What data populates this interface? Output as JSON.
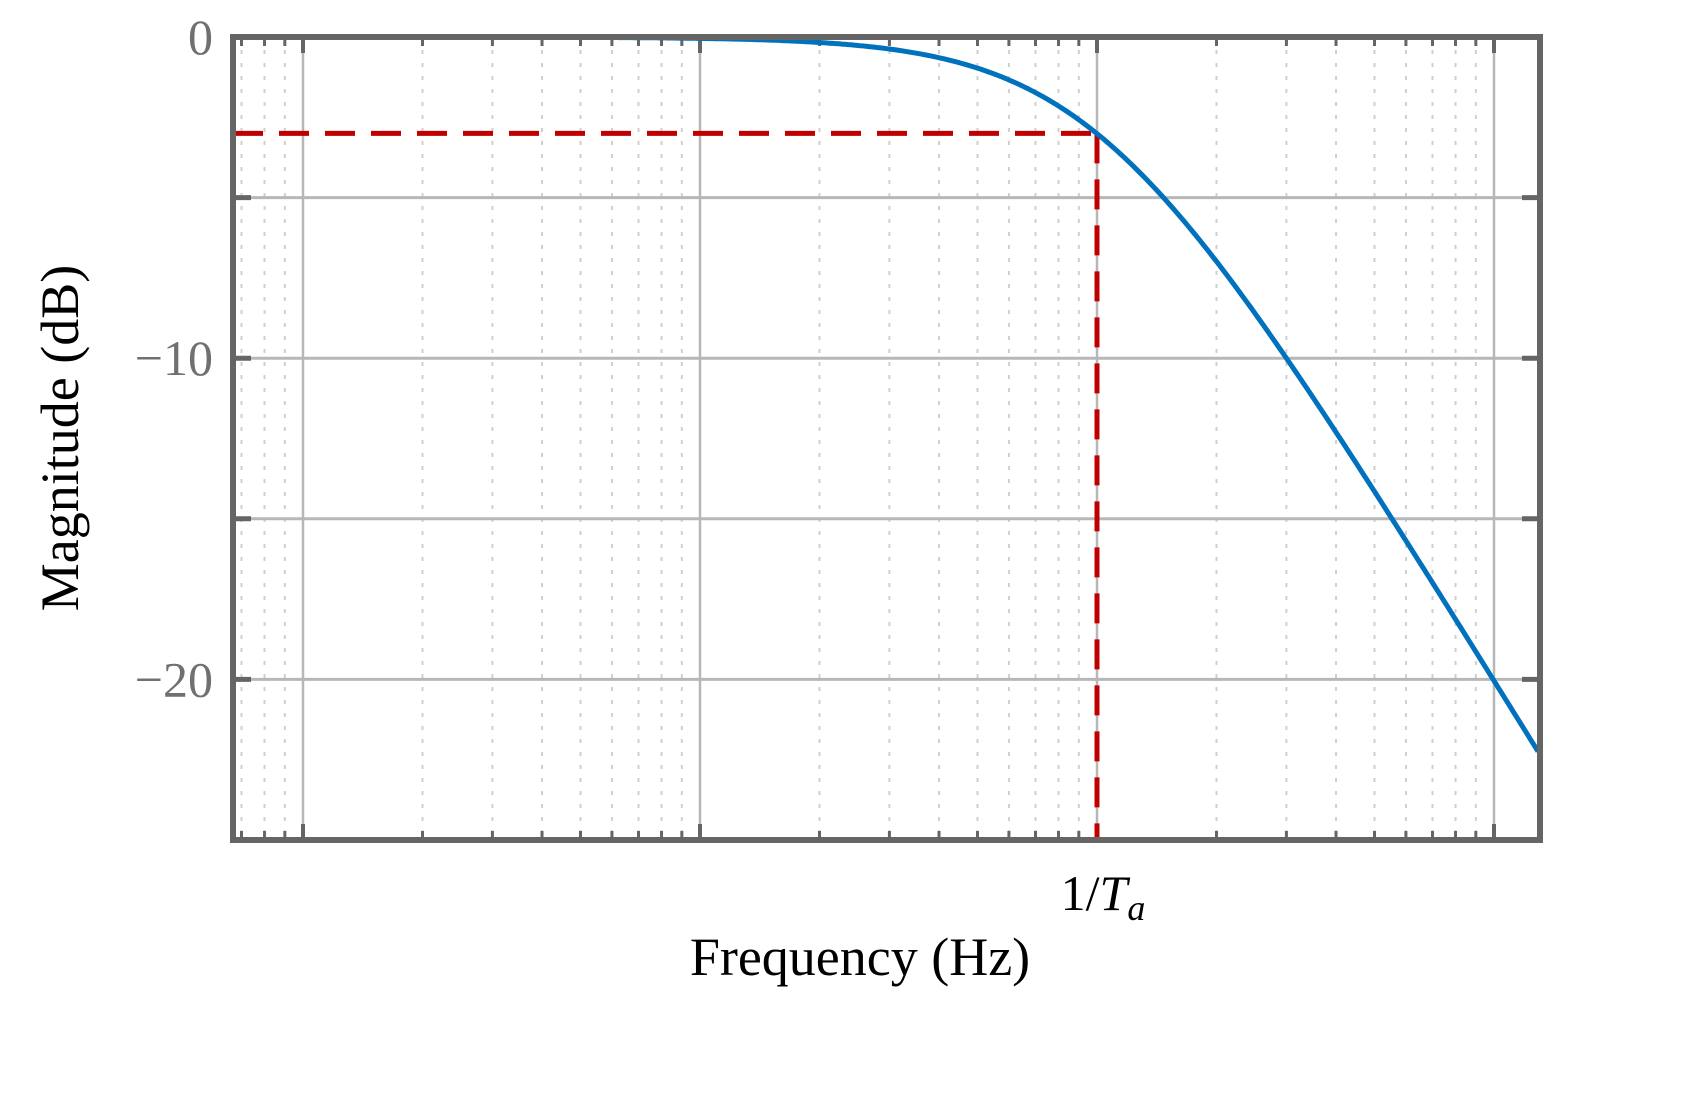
{
  "chart_data": {
    "type": "line",
    "title": "",
    "xlabel": "Frequency (Hz)",
    "ylabel": "Magnitude (dB)",
    "x_scale": "log",
    "x_tick_labels": [],
    "y_ticks": [
      0,
      -5,
      -10,
      -15,
      -20,
      -25
    ],
    "y_tick_labels": [
      {
        "value": 0,
        "label": "0"
      },
      {
        "value": -10,
        "label": "−10"
      },
      {
        "value": -20,
        "label": "−20"
      }
    ],
    "ylim": [
      -25,
      0
    ],
    "grid": true,
    "legend": "none",
    "series": [
      {
        "style": "solid",
        "color": "#0072BD",
        "formula": "first-order low-pass: -10*log10(1+(f*Ta)^2)"
      }
    ],
    "annotations": [
      {
        "type": "cutoff-marker",
        "style": "dashed",
        "color": "#C00000",
        "label_text": "1/",
        "label_var": "T",
        "label_sub": "a",
        "y": -3
      }
    ]
  }
}
